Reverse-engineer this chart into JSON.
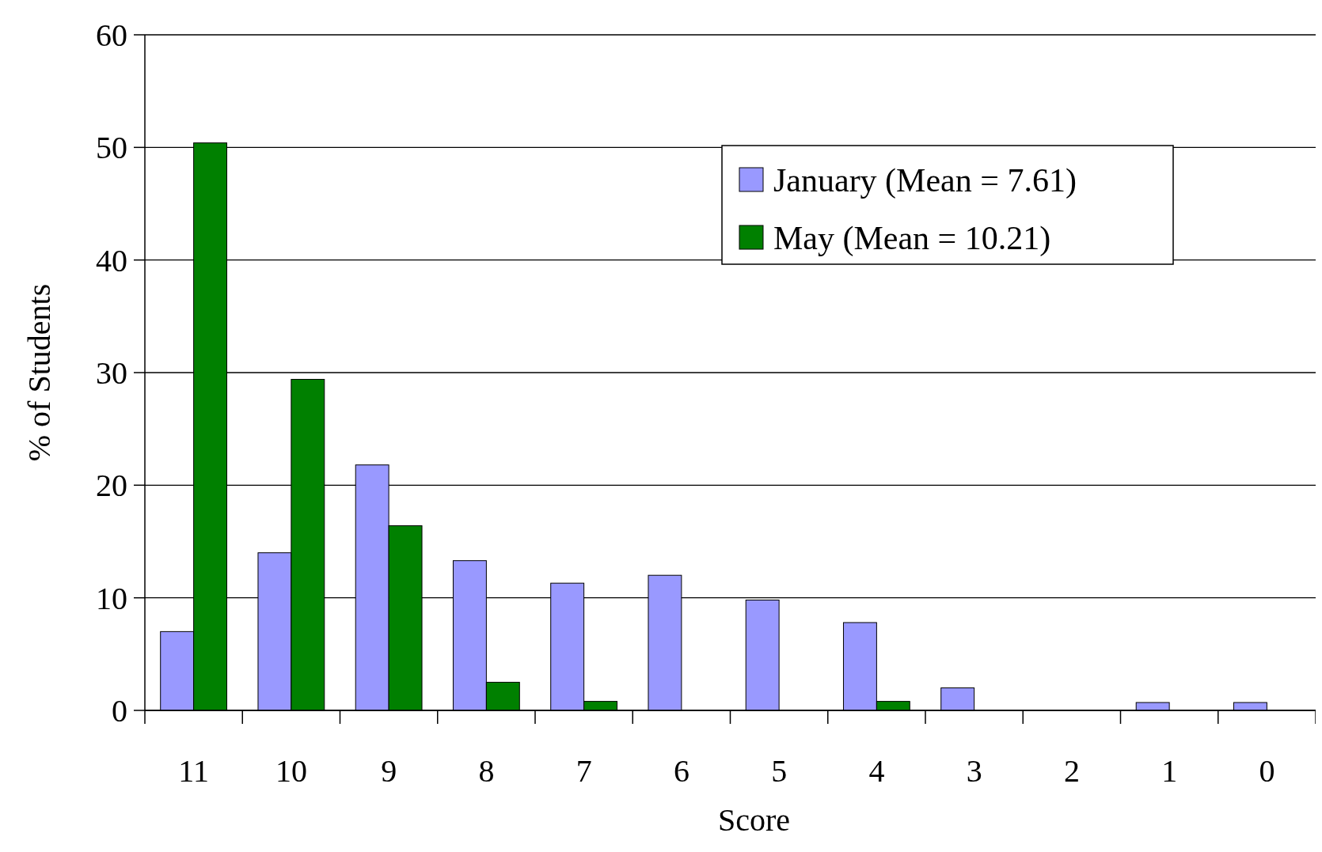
{
  "chart_data": {
    "type": "bar",
    "xlabel": "Score",
    "ylabel": "% of Students",
    "categories": [
      "11",
      "10",
      "9",
      "8",
      "7",
      "6",
      "5",
      "4",
      "3",
      "2",
      "1",
      "0"
    ],
    "series": [
      {
        "name": "January (Mean = 7.61)",
        "color": "#9999ff",
        "values": [
          7.0,
          14.0,
          21.8,
          13.3,
          11.3,
          12.0,
          9.8,
          7.8,
          2.0,
          0,
          0.7,
          0.7
        ]
      },
      {
        "name": "May (Mean = 10.21)",
        "color": "#008000",
        "values": [
          50.4,
          29.4,
          16.4,
          2.5,
          0.8,
          0,
          0,
          0.8,
          0,
          0,
          0,
          0
        ]
      }
    ],
    "ylim": [
      0,
      60
    ],
    "yticks": [
      0,
      10,
      20,
      30,
      40,
      50,
      60
    ],
    "grid": "y",
    "legend": "top right"
  }
}
